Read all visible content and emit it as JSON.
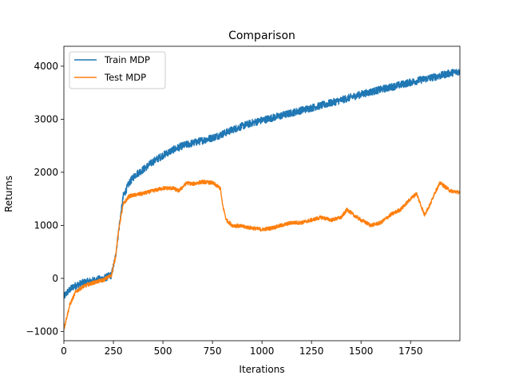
{
  "chart_data": {
    "type": "line",
    "title": "Comparison",
    "xlabel": "Iterations",
    "ylabel": "Returns",
    "xlim": [
      0,
      1999
    ],
    "ylim": [
      -1175,
      4375
    ],
    "xticks": [
      0,
      250,
      500,
      750,
      1000,
      1250,
      1500,
      1750
    ],
    "yticks": [
      -1000,
      0,
      1000,
      2000,
      3000,
      4000
    ],
    "xtick_labels": [
      "0",
      "250",
      "500",
      "750",
      "1000",
      "1250",
      "1500",
      "1750"
    ],
    "ytick_labels": [
      "−1000",
      "0",
      "1000",
      "2000",
      "3000",
      "4000"
    ],
    "grid": false,
    "legend_position": "upper-left",
    "series": [
      {
        "name": "Train MDP",
        "color": "#1f77b4",
        "noise": 70,
        "x": [
          0,
          20,
          50,
          100,
          150,
          200,
          240,
          260,
          280,
          300,
          330,
          360,
          400,
          450,
          500,
          550,
          600,
          650,
          700,
          750,
          800,
          850,
          900,
          950,
          1000,
          1100,
          1200,
          1300,
          1400,
          1500,
          1600,
          1700,
          1800,
          1900,
          1950,
          1999
        ],
        "values": [
          -350,
          -250,
          -150,
          -80,
          -40,
          0,
          60,
          400,
          1000,
          1550,
          1800,
          1950,
          2050,
          2200,
          2320,
          2420,
          2500,
          2550,
          2600,
          2650,
          2720,
          2800,
          2870,
          2930,
          2980,
          3070,
          3170,
          3260,
          3360,
          3470,
          3560,
          3650,
          3740,
          3820,
          3870,
          3900
        ]
      },
      {
        "name": "Test MDP",
        "color": "#ff7f0e",
        "noise": 35,
        "x": [
          0,
          10,
          30,
          60,
          100,
          150,
          200,
          240,
          260,
          280,
          300,
          330,
          370,
          400,
          450,
          500,
          550,
          580,
          620,
          650,
          700,
          750,
          790,
          800,
          820,
          850,
          900,
          950,
          1000,
          1050,
          1100,
          1150,
          1200,
          1250,
          1300,
          1350,
          1400,
          1430,
          1460,
          1480,
          1500,
          1550,
          1600,
          1650,
          1700,
          1750,
          1780,
          1820,
          1850,
          1870,
          1900,
          1950,
          1999
        ],
        "values": [
          -950,
          -800,
          -500,
          -250,
          -150,
          -80,
          -30,
          60,
          400,
          1000,
          1400,
          1550,
          1580,
          1600,
          1650,
          1700,
          1700,
          1650,
          1800,
          1780,
          1820,
          1800,
          1700,
          1400,
          1100,
          1000,
          980,
          950,
          920,
          950,
          1000,
          1050,
          1050,
          1100,
          1150,
          1100,
          1150,
          1300,
          1200,
          1150,
          1100,
          1000,
          1050,
          1200,
          1300,
          1500,
          1600,
          1200,
          1400,
          1600,
          1800,
          1650,
          1620
        ]
      }
    ]
  }
}
